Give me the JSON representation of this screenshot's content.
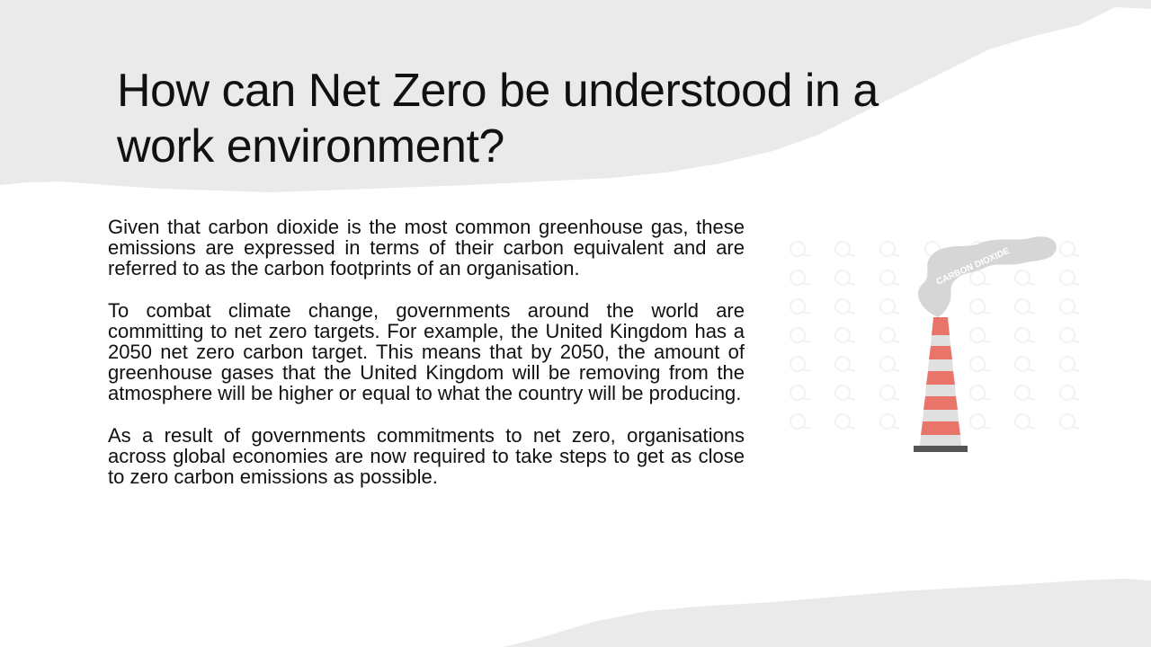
{
  "slide": {
    "title": "How can Net Zero be understood in a work environment?",
    "paragraphs": [
      "Given that carbon dioxide is the most common greenhouse gas, these emissions are expressed in terms of their carbon equivalent and are referred to as the carbon footprints of an organisation.",
      "To combat climate change, governments around the world are committing to net zero targets. For example, the United Kingdom has a 2050 net zero carbon target. This means that by 2050, the amount of greenhouse gases that the United Kingdom will be removing from the atmosphere will be higher or equal to what the country will be producing.",
      "As a result of governments commitments to net zero, organisations across global economies are now required to take steps to get as close to zero carbon emissions as possible."
    ],
    "illustration": {
      "label": "CARBON DIOXIDE",
      "icon": "chimney-smoke-icon",
      "colors": {
        "smoke": "#d6d6d6",
        "stripe_red": "#e8746a",
        "stripe_light": "#e0e0e0",
        "base": "#555555"
      }
    },
    "colors": {
      "background": "#ffffff",
      "paper_gray": "#ebeaea",
      "text": "#111111"
    }
  }
}
